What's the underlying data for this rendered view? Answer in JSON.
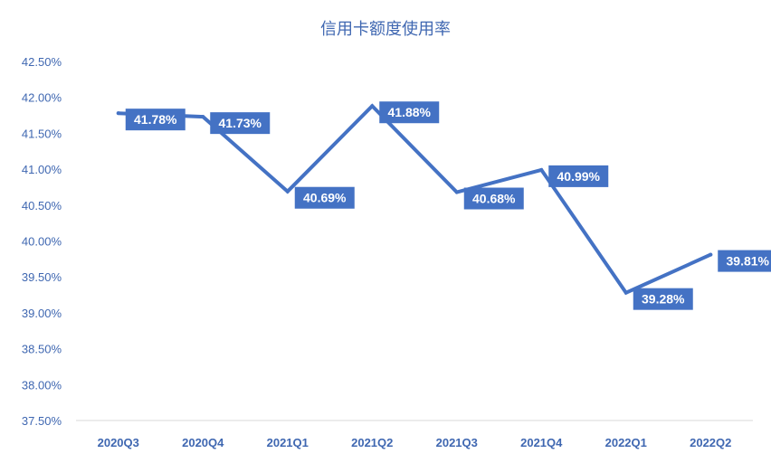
{
  "chart_data": {
    "type": "line",
    "title": "信用卡额度使用率",
    "xlabel": "",
    "ylabel": "",
    "categories": [
      "2020Q3",
      "2020Q4",
      "2021Q1",
      "2021Q2",
      "2021Q3",
      "2021Q4",
      "2022Q1",
      "2022Q2"
    ],
    "series": [
      {
        "values": [
          41.78,
          41.73,
          40.69,
          41.88,
          40.68,
          40.99,
          39.28,
          39.81
        ],
        "data_labels": [
          "41.78%",
          "41.73%",
          "40.69%",
          "41.88%",
          "40.68%",
          "40.99%",
          "39.28%",
          "39.81%"
        ],
        "color": "#4472c4"
      }
    ],
    "ylim": [
      37.5,
      42.5
    ],
    "yticks": [
      37.5,
      38.0,
      38.5,
      39.0,
      39.5,
      40.0,
      40.5,
      41.0,
      41.5,
      42.0,
      42.5
    ],
    "ytick_labels": [
      "37.50%",
      "38.00%",
      "38.50%",
      "39.00%",
      "39.50%",
      "40.00%",
      "40.50%",
      "41.00%",
      "41.50%",
      "42.00%",
      "42.50%"
    ],
    "grid": false,
    "legend": "none",
    "label_bg": "#4472c4",
    "text_color": "#3f67b1",
    "axis_color": "#d9d9d9"
  }
}
